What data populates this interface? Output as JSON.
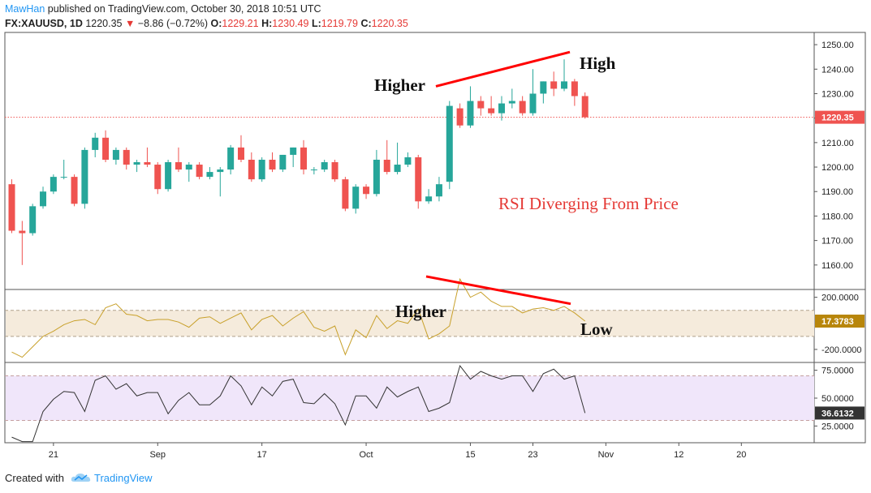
{
  "header": {
    "user": "MawHan",
    "published": " published on TradingView.com, October 30, 2018 10:51 UTC",
    "symbol": "FX:XAUUSD, 1D",
    "last": "1220.35",
    "down_arrow": "▼",
    "change": "−8.86 (−0.72%)",
    "o_label": "O:",
    "o_val": "1229.21",
    "h_label": "H:",
    "h_val": "1230.49",
    "l_label": "L:",
    "l_val": "1219.79",
    "c_label": "C:",
    "c_val": "1220.35"
  },
  "footer": {
    "created_with": "Created with",
    "brand": "TradingView",
    "logo_icon": "tradingview-cloud-icon"
  },
  "colors": {
    "up": "#26a69a",
    "down": "#ef5350",
    "trendline": "#ff0000",
    "cci_line": "#c8a02a",
    "cci_band": "#f5ebdc",
    "rsi_line": "#333333",
    "rsi_band": "#f0e6fa",
    "price_badge": "#ef5350",
    "cci_badge": "#b8860b",
    "rsi_badge": "#333333"
  },
  "chart_data": [
    {
      "type": "candlestick",
      "series_count": 1,
      "ylim": [
        1150,
        1255
      ],
      "yticks": [
        1160,
        1170,
        1180,
        1190,
        1200,
        1210,
        1220,
        1230,
        1240,
        1250
      ],
      "ytick_labels": [
        "1160.00",
        "1170.00",
        "1180.00",
        "1190.00",
        "1200.00",
        "1210.00",
        "1220.00",
        "1230.00",
        "1240.00",
        "1250.00"
      ],
      "xticks": [
        {
          "label": "21",
          "index": 4
        },
        {
          "label": "Sep",
          "index": 14
        },
        {
          "label": "17",
          "index": 24
        },
        {
          "label": "Oct",
          "index": 34
        },
        {
          "label": "15",
          "index": 44
        },
        {
          "label": "23",
          "index": 50
        },
        {
          "label": "Nov",
          "index": 57
        },
        {
          "label": "12",
          "index": 64
        },
        {
          "label": "20",
          "index": 70
        }
      ],
      "candles": [
        {
          "o": 1193,
          "h": 1195,
          "l": 1173,
          "c": 1174
        },
        {
          "o": 1174,
          "h": 1178,
          "l": 1160,
          "c": 1173
        },
        {
          "o": 1173,
          "h": 1185,
          "l": 1172,
          "c": 1184
        },
        {
          "o": 1184,
          "h": 1192,
          "l": 1183,
          "c": 1190
        },
        {
          "o": 1190,
          "h": 1197,
          "l": 1189,
          "c": 1196
        },
        {
          "o": 1196,
          "h": 1203,
          "l": 1195,
          "c": 1196
        },
        {
          "o": 1196,
          "h": 1197,
          "l": 1184,
          "c": 1185
        },
        {
          "o": 1185,
          "h": 1208,
          "l": 1183,
          "c": 1207
        },
        {
          "o": 1207,
          "h": 1214,
          "l": 1204,
          "c": 1212
        },
        {
          "o": 1212,
          "h": 1215,
          "l": 1202,
          "c": 1203
        },
        {
          "o": 1203,
          "h": 1208,
          "l": 1201,
          "c": 1207
        },
        {
          "o": 1207,
          "h": 1208,
          "l": 1199,
          "c": 1201
        },
        {
          "o": 1201,
          "h": 1203,
          "l": 1198,
          "c": 1202
        },
        {
          "o": 1202,
          "h": 1208,
          "l": 1200,
          "c": 1201
        },
        {
          "o": 1201,
          "h": 1202,
          "l": 1189,
          "c": 1191
        },
        {
          "o": 1191,
          "h": 1203,
          "l": 1190,
          "c": 1202
        },
        {
          "o": 1202,
          "h": 1208,
          "l": 1198,
          "c": 1199
        },
        {
          "o": 1199,
          "h": 1202,
          "l": 1194,
          "c": 1201
        },
        {
          "o": 1201,
          "h": 1202,
          "l": 1195,
          "c": 1196
        },
        {
          "o": 1196,
          "h": 1200,
          "l": 1195,
          "c": 1198
        },
        {
          "o": 1198,
          "h": 1200,
          "l": 1188,
          "c": 1199
        },
        {
          "o": 1199,
          "h": 1209,
          "l": 1197,
          "c": 1208
        },
        {
          "o": 1208,
          "h": 1213,
          "l": 1202,
          "c": 1203
        },
        {
          "o": 1203,
          "h": 1206,
          "l": 1194,
          "c": 1195
        },
        {
          "o": 1195,
          "h": 1204,
          "l": 1194,
          "c": 1203
        },
        {
          "o": 1203,
          "h": 1206,
          "l": 1198,
          "c": 1199
        },
        {
          "o": 1199,
          "h": 1205,
          "l": 1198,
          "c": 1205
        },
        {
          "o": 1205,
          "h": 1208,
          "l": 1200,
          "c": 1208
        },
        {
          "o": 1208,
          "h": 1211,
          "l": 1197,
          "c": 1199
        },
        {
          "o": 1199,
          "h": 1200,
          "l": 1197,
          "c": 1199
        },
        {
          "o": 1199,
          "h": 1203,
          "l": 1198,
          "c": 1202
        },
        {
          "o": 1202,
          "h": 1203,
          "l": 1194,
          "c": 1195
        },
        {
          "o": 1195,
          "h": 1196,
          "l": 1182,
          "c": 1183
        },
        {
          "o": 1183,
          "h": 1193,
          "l": 1181,
          "c": 1192
        },
        {
          "o": 1192,
          "h": 1193,
          "l": 1187,
          "c": 1189
        },
        {
          "o": 1189,
          "h": 1207,
          "l": 1188,
          "c": 1203
        },
        {
          "o": 1203,
          "h": 1211,
          "l": 1197,
          "c": 1198
        },
        {
          "o": 1198,
          "h": 1210,
          "l": 1197,
          "c": 1201
        },
        {
          "o": 1201,
          "h": 1206,
          "l": 1200,
          "c": 1204
        },
        {
          "o": 1204,
          "h": 1205,
          "l": 1183,
          "c": 1186
        },
        {
          "o": 1186,
          "h": 1191,
          "l": 1185,
          "c": 1188
        },
        {
          "o": 1188,
          "h": 1196,
          "l": 1186,
          "c": 1193
        },
        {
          "o": 1194,
          "h": 1227,
          "l": 1191,
          "c": 1225
        },
        {
          "o": 1224,
          "h": 1226,
          "l": 1216,
          "c": 1217
        },
        {
          "o": 1217,
          "h": 1233,
          "l": 1216,
          "c": 1227
        },
        {
          "o": 1227,
          "h": 1229,
          "l": 1221,
          "c": 1224
        },
        {
          "o": 1224,
          "h": 1229,
          "l": 1221,
          "c": 1222
        },
        {
          "o": 1222,
          "h": 1229,
          "l": 1219,
          "c": 1226
        },
        {
          "o": 1226,
          "h": 1232,
          "l": 1224,
          "c": 1227
        },
        {
          "o": 1227,
          "h": 1229,
          "l": 1221,
          "c": 1222
        },
        {
          "o": 1222,
          "h": 1240,
          "l": 1221,
          "c": 1230
        },
        {
          "o": 1230,
          "h": 1235,
          "l": 1226,
          "c": 1235
        },
        {
          "o": 1235,
          "h": 1239,
          "l": 1229,
          "c": 1232
        },
        {
          "o": 1232,
          "h": 1244,
          "l": 1231,
          "c": 1235
        },
        {
          "o": 1235,
          "h": 1236,
          "l": 1225,
          "c": 1229
        },
        {
          "o": 1229,
          "h": 1230.49,
          "l": 1219.79,
          "c": 1220.35
        }
      ],
      "last_price": 1220.35,
      "last_price_label": "1220.35",
      "annotations": [
        "Higher",
        "High",
        "RSI Diverging From Price"
      ]
    },
    {
      "type": "line",
      "indicator": "cci",
      "ylim": [
        -300,
        260
      ],
      "yticks": [
        200,
        -200
      ],
      "ytick_labels": [
        "200.0000",
        "-200.0000"
      ],
      "band": [
        -100,
        100
      ],
      "last_label": "17.3783",
      "values": [
        -220,
        -260,
        -180,
        -100,
        -60,
        -10,
        20,
        30,
        -10,
        120,
        150,
        70,
        60,
        20,
        30,
        30,
        10,
        -30,
        40,
        50,
        0,
        40,
        80,
        -50,
        30,
        60,
        -20,
        40,
        90,
        -30,
        -60,
        -20,
        -240,
        -50,
        -110,
        60,
        -40,
        20,
        0,
        110,
        -120,
        -80,
        -20,
        340,
        200,
        240,
        170,
        130,
        130,
        80,
        110,
        120,
        100,
        130,
        80,
        17.3783
      ],
      "annotations": [
        "Higher",
        "Low"
      ]
    },
    {
      "type": "line",
      "indicator": "rsi",
      "ylim": [
        10,
        82
      ],
      "yticks": [
        75,
        50,
        25
      ],
      "ytick_labels": [
        "75.0000",
        "50.0000",
        "25.0000"
      ],
      "band": [
        30,
        70
      ],
      "last_label": "36.6132",
      "values": [
        15,
        11,
        11,
        38,
        49,
        56,
        55,
        38,
        66,
        70,
        58,
        63,
        52,
        55,
        55,
        36,
        48,
        55,
        44,
        44,
        52,
        70,
        61,
        44,
        60,
        52,
        65,
        67,
        46,
        45,
        54,
        45,
        26,
        52,
        52,
        41,
        60,
        51,
        56,
        60,
        38,
        41,
        46,
        79,
        67,
        74,
        70,
        67,
        70,
        70,
        56,
        72,
        76,
        67,
        70,
        36.6132
      ]
    }
  ]
}
